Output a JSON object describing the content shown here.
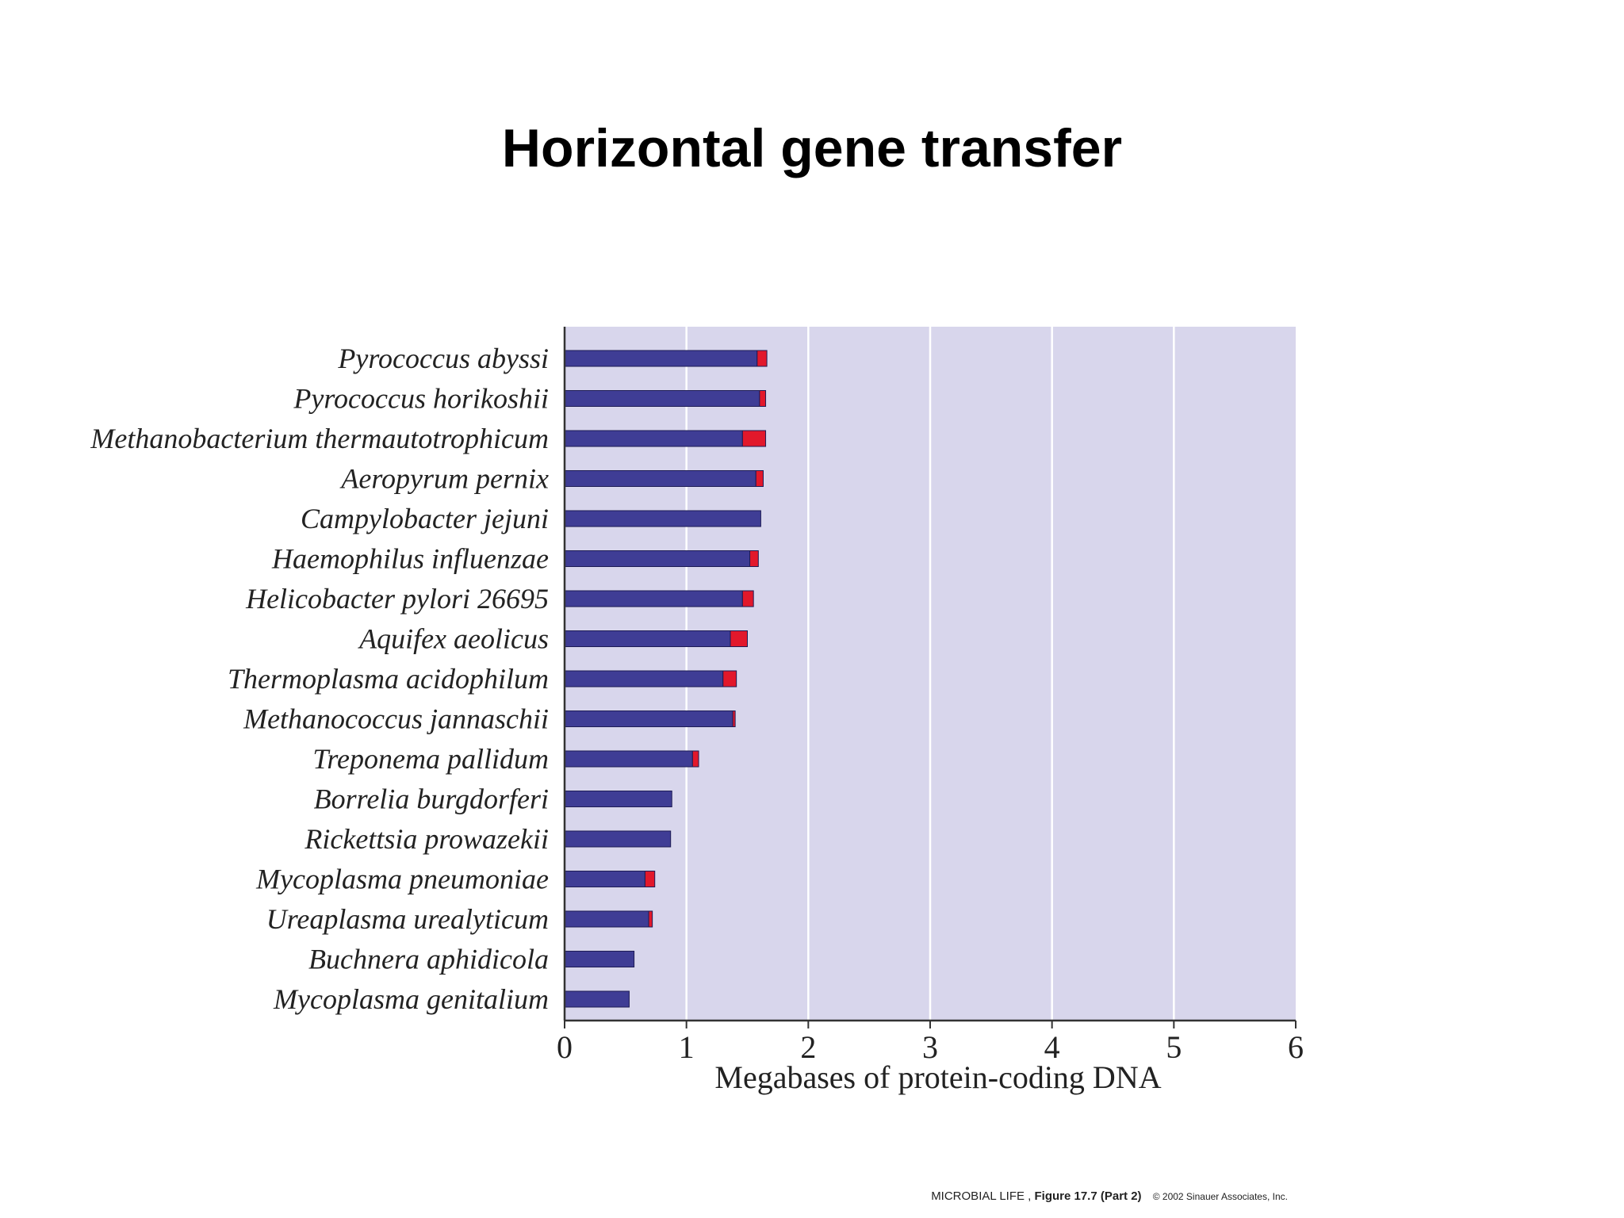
{
  "slide": {
    "title": "Horizontal gene transfer"
  },
  "credit": {
    "book": "MICROBIAL LIFE ,",
    "figure": "Figure 17.7 (Part 2)",
    "copyright": "© 2002 Sinauer Associates, Inc."
  },
  "chart_data": {
    "type": "bar",
    "orientation": "horizontal",
    "stacked": true,
    "title": "",
    "xlabel": "Megabases of protein-coding DNA",
    "ylabel": "",
    "xlim": [
      0,
      6
    ],
    "xticks": [
      "0",
      "1",
      "2",
      "3",
      "4",
      "5",
      "6"
    ],
    "grid": true,
    "categories": [
      "Pyrococcus abyssi",
      "Pyrococcus horikoshii",
      "Methanobacterium thermautotrophicum",
      "Aeropyrum pernix",
      "Campylobacter jejuni",
      "Haemophilus influenzae",
      "Helicobacter pylori 26695",
      "Aquifex aeolicus",
      "Thermoplasma acidophilum",
      "Methanococcus jannaschii",
      "Treponema pallidum",
      "Borrelia burgdorferi",
      "Rickettsia prowazekii",
      "Mycoplasma pneumoniae",
      "Ureaplasma urealyticum",
      "Buchnera aphidicola",
      "Mycoplasma genitalium"
    ],
    "series": [
      {
        "color": "#3f3d95",
        "values": [
          1.58,
          1.6,
          1.46,
          1.57,
          1.61,
          1.52,
          1.46,
          1.36,
          1.3,
          1.38,
          1.05,
          0.88,
          0.87,
          0.66,
          0.69,
          0.57,
          0.53
        ]
      },
      {
        "color": "#e2182b",
        "values": [
          0.08,
          0.05,
          0.19,
          0.06,
          0.0,
          0.07,
          0.09,
          0.14,
          0.11,
          0.02,
          0.05,
          0.0,
          0.0,
          0.08,
          0.03,
          0.0,
          0.0
        ]
      }
    ],
    "colors": {
      "plot_background": "#d8d6ec",
      "gridline": "#ffffff",
      "axis": "#333333"
    }
  }
}
